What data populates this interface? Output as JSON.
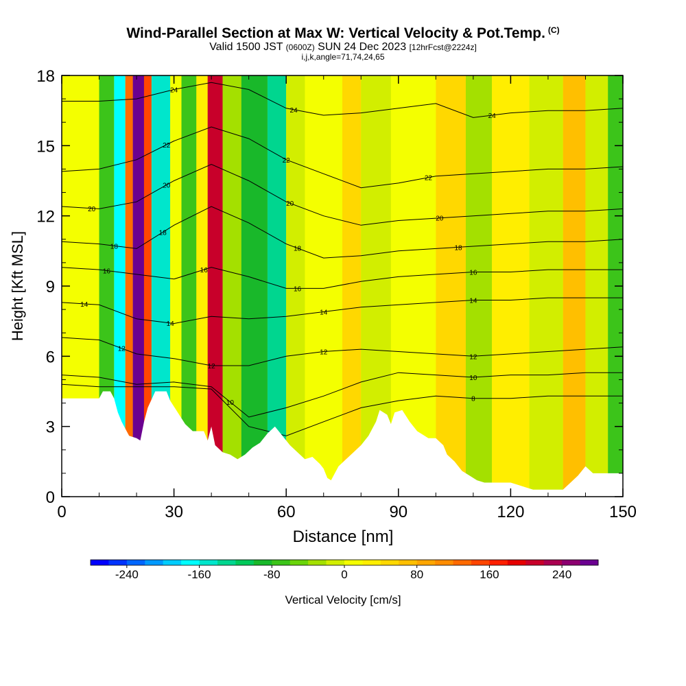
{
  "title": {
    "main": "Wind-Parallel Section at Max W: Vertical Velocity & Pot.Temp.",
    "main_note": "(C)",
    "valid_prefix": "Valid 1500 JST",
    "valid_utc": "(0600Z)",
    "valid_date": "SUN 24 Dec 2023",
    "forecast": "[12hrFcst@2224z]",
    "indices": "i,j,k,angle=71,74,24,65"
  },
  "chart_data": {
    "type": "heatmap",
    "title": "Wind-Parallel Section at Max W: Vertical Velocity & Pot.Temp.",
    "xlabel": "Distance [nm]",
    "ylabel": "Height [Kft MSL]",
    "xlim": [
      0,
      150
    ],
    "ylim": [
      0,
      18
    ],
    "xticks": [
      "0",
      "30",
      "60",
      "90",
      "120",
      "150"
    ],
    "yticks": [
      "0",
      "3",
      "6",
      "9",
      "12",
      "15",
      "18"
    ],
    "colorbar": {
      "label": "Vertical Velocity [cm/s]",
      "ticks": [
        "-240",
        "-160",
        "-80",
        "0",
        "80",
        "160",
        "240"
      ],
      "tick_values": [
        -240,
        -160,
        -80,
        0,
        80,
        160,
        240
      ],
      "range": [
        -280,
        280
      ],
      "bin_width": 20,
      "colors": [
        "#0000ff",
        "#0033ff",
        "#0066ff",
        "#0099ff",
        "#00ccff",
        "#00ffff",
        "#00e6cc",
        "#00d68f",
        "#00c95a",
        "#19b82a",
        "#3cc41a",
        "#6ad40a",
        "#a4e000",
        "#d2ee00",
        "#f4ff00",
        "#ffee00",
        "#ffd800",
        "#ffbf00",
        "#ffa600",
        "#ff8c00",
        "#ff6a00",
        "#ff4500",
        "#ff1f00",
        "#e60000",
        "#c8002a",
        "#aa0050",
        "#8c0070",
        "#6b0090"
      ]
    },
    "velocity_cells": [
      {
        "x": [
          0,
          10
        ],
        "w": 5
      },
      {
        "x": [
          10,
          14
        ],
        "w": -80
      },
      {
        "x": [
          14,
          17
        ],
        "w": -180
      },
      {
        "x": [
          17,
          19
        ],
        "w": 120
      },
      {
        "x": [
          19,
          22
        ],
        "w": 270
      },
      {
        "x": [
          22,
          24
        ],
        "w": 150
      },
      {
        "x": [
          24,
          29
        ],
        "w": -150
      },
      {
        "x": [
          29,
          32
        ],
        "w": 10
      },
      {
        "x": [
          32,
          36
        ],
        "w": -70
      },
      {
        "x": [
          36,
          39
        ],
        "w": 20
      },
      {
        "x": [
          39,
          43
        ],
        "w": 210
      },
      {
        "x": [
          43,
          48
        ],
        "w": -30
      },
      {
        "x": [
          48,
          55
        ],
        "w": -90
      },
      {
        "x": [
          55,
          60
        ],
        "w": -140
      },
      {
        "x": [
          60,
          65
        ],
        "w": -20
      },
      {
        "x": [
          65,
          75
        ],
        "w": 10
      },
      {
        "x": [
          75,
          80
        ],
        "w": 40
      },
      {
        "x": [
          80,
          88
        ],
        "w": -20
      },
      {
        "x": [
          88,
          100
        ],
        "w": 15
      },
      {
        "x": [
          100,
          108
        ],
        "w": 40
      },
      {
        "x": [
          108,
          115
        ],
        "w": -40
      },
      {
        "x": [
          115,
          125
        ],
        "w": 20
      },
      {
        "x": [
          125,
          134
        ],
        "w": -10
      },
      {
        "x": [
          134,
          140
        ],
        "w": 70
      },
      {
        "x": [
          140,
          146
        ],
        "w": -10
      },
      {
        "x": [
          146,
          150
        ],
        "w": -80
      }
    ],
    "terrain": [
      [
        0,
        4.2
      ],
      [
        10,
        4.2
      ],
      [
        11,
        4.5
      ],
      [
        13,
        4.5
      ],
      [
        14,
        4.2
      ],
      [
        15,
        3.6
      ],
      [
        16,
        3.2
      ],
      [
        18,
        2.6
      ],
      [
        20,
        2.5
      ],
      [
        21,
        2.4
      ],
      [
        22,
        3.2
      ],
      [
        23,
        3.8
      ],
      [
        25,
        4.5
      ],
      [
        28,
        4.5
      ],
      [
        29,
        4.1
      ],
      [
        31,
        3.6
      ],
      [
        33,
        3.1
      ],
      [
        35,
        2.8
      ],
      [
        38,
        2.8
      ],
      [
        39,
        2.4
      ],
      [
        40,
        3.0
      ],
      [
        41,
        2.2
      ],
      [
        43,
        1.9
      ],
      [
        45,
        1.8
      ],
      [
        47,
        1.6
      ],
      [
        49,
        1.8
      ],
      [
        51,
        2.1
      ],
      [
        53,
        2.3
      ],
      [
        55,
        2.7
      ],
      [
        57,
        3.0
      ],
      [
        59,
        2.6
      ],
      [
        61,
        2.2
      ],
      [
        63,
        1.9
      ],
      [
        65,
        1.6
      ],
      [
        67,
        1.7
      ],
      [
        69,
        1.4
      ],
      [
        70,
        1.2
      ],
      [
        71,
        0.8
      ],
      [
        72,
        0.7
      ],
      [
        74,
        1.3
      ],
      [
        76,
        1.6
      ],
      [
        78,
        1.9
      ],
      [
        80,
        2.2
      ],
      [
        82,
        2.6
      ],
      [
        84,
        3.2
      ],
      [
        85,
        3.7
      ],
      [
        87,
        3.5
      ],
      [
        88,
        3.1
      ],
      [
        89,
        3.6
      ],
      [
        91,
        3.7
      ],
      [
        93,
        3.2
      ],
      [
        95,
        2.8
      ],
      [
        98,
        2.5
      ],
      [
        100,
        2.5
      ],
      [
        102,
        2.2
      ],
      [
        103,
        1.8
      ],
      [
        105,
        1.5
      ],
      [
        107,
        1.1
      ],
      [
        109,
        0.9
      ],
      [
        111,
        0.7
      ],
      [
        113,
        0.6
      ],
      [
        120,
        0.6
      ],
      [
        122,
        0.5
      ],
      [
        124,
        0.4
      ],
      [
        126,
        0.3
      ],
      [
        134,
        0.3
      ],
      [
        136,
        0.6
      ],
      [
        138,
        0.9
      ],
      [
        140,
        1.3
      ],
      [
        142,
        1.0
      ],
      [
        145,
        1.0
      ],
      [
        150,
        1.0
      ]
    ],
    "theta_contours": [
      {
        "label": "24",
        "labels_at": [
          30,
          62,
          115
        ],
        "y": [
          16.9,
          16.9,
          17.0,
          17.4,
          17.7,
          17.4,
          16.6,
          16.3,
          16.4,
          16.6,
          16.8,
          16.2,
          16.4,
          16.5,
          16.5,
          16.6
        ]
      },
      {
        "label": "22",
        "labels_at": [
          28,
          60,
          98
        ],
        "y": [
          13.9,
          14.0,
          14.4,
          15.2,
          15.8,
          15.3,
          14.4,
          13.8,
          13.2,
          13.4,
          13.7,
          13.8,
          13.9,
          14.0,
          14.0,
          14.1
        ]
      },
      {
        "label": "20",
        "labels_at": [
          8,
          28,
          61,
          101
        ],
        "y": [
          12.4,
          12.3,
          12.6,
          13.5,
          14.2,
          13.5,
          12.6,
          12.0,
          11.6,
          11.8,
          11.9,
          12.0,
          12.1,
          12.2,
          12.2,
          12.3
        ]
      },
      {
        "label": "18",
        "labels_at": [
          14,
          27,
          63,
          106
        ],
        "y": [
          10.9,
          10.8,
          10.6,
          11.6,
          12.4,
          11.7,
          10.8,
          10.2,
          10.3,
          10.5,
          10.6,
          10.7,
          10.8,
          10.9,
          10.9,
          11.0
        ]
      },
      {
        "label": "16",
        "labels_at": [
          12,
          38,
          63,
          110
        ],
        "y": [
          9.8,
          9.7,
          9.5,
          9.3,
          9.8,
          9.4,
          8.9,
          8.9,
          9.2,
          9.4,
          9.5,
          9.6,
          9.6,
          9.7,
          9.7,
          9.7
        ]
      },
      {
        "label": "14",
        "labels_at": [
          6,
          29,
          70,
          110
        ],
        "y": [
          8.3,
          8.2,
          7.6,
          7.4,
          7.7,
          7.6,
          7.7,
          7.9,
          8.1,
          8.2,
          8.3,
          8.4,
          8.4,
          8.5,
          8.5,
          8.5
        ]
      },
      {
        "label": "12",
        "labels_at": [
          16,
          40,
          70,
          110
        ],
        "y": [
          6.8,
          6.7,
          6.1,
          5.9,
          5.6,
          5.6,
          6.0,
          6.2,
          6.3,
          6.2,
          6.1,
          6.0,
          6.1,
          6.2,
          6.3,
          6.4
        ]
      },
      {
        "label": "10",
        "labels_at": [
          45,
          110
        ],
        "y": [
          5.2,
          5.1,
          4.8,
          4.9,
          4.7,
          3.4,
          3.8,
          4.3,
          4.9,
          5.3,
          5.2,
          5.1,
          5.2,
          5.2,
          5.3,
          5.3
        ]
      },
      {
        "label": "8",
        "labels_at": [
          110
        ],
        "y": [
          4.8,
          4.7,
          4.7,
          4.7,
          4.6,
          3.0,
          2.6,
          3.2,
          3.8,
          4.1,
          4.3,
          4.2,
          4.2,
          4.3,
          4.3,
          4.3
        ]
      }
    ],
    "theta_x": [
      0,
      10,
      20,
      30,
      40,
      50,
      60,
      70,
      80,
      90,
      100,
      110,
      120,
      130,
      140,
      150
    ]
  }
}
